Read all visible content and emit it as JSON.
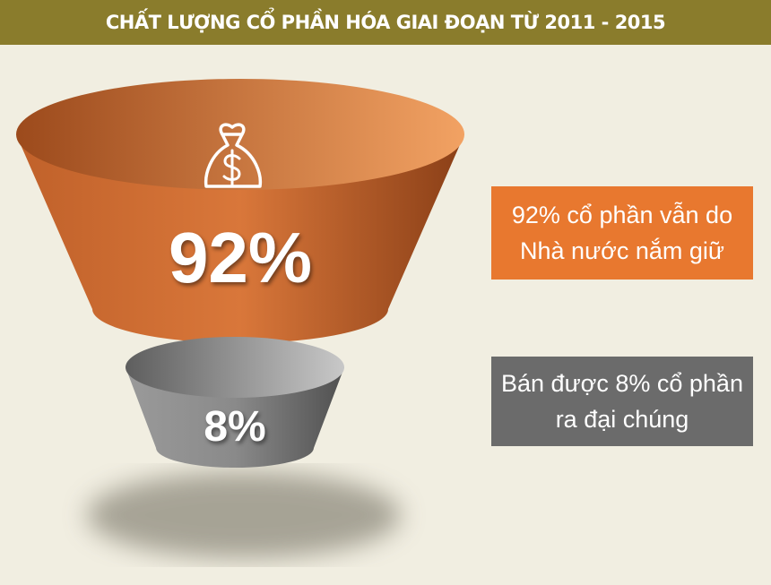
{
  "chart_data": {
    "type": "funnel",
    "title": "CHẤT LƯỢNG CỔ PHẦN HÓA GIAI ĐOẠN TỪ 2011 - 2015",
    "categories": [
      "92% cổ phần vẫn do Nhà nước nắm giữ",
      "Bán được 8% cổ phần ra đại chúng"
    ],
    "values": [
      92,
      8
    ],
    "value_labels": [
      "92%",
      "8%"
    ],
    "colors": [
      "#e8782f",
      "#6b6b6b"
    ]
  }
}
